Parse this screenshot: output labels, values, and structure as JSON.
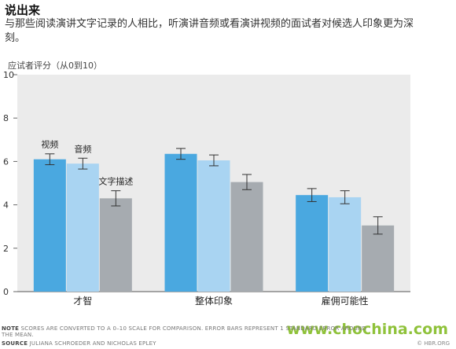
{
  "title": "说出来",
  "subtitle": "与那些阅读演讲文字记录的人相比，听演讲音频或看演讲视频的面试者对候选人印象更为深刻。",
  "watermark": "www.chochina.com",
  "footer": {
    "note_label": "NOTE",
    "note_text": "SCORES ARE CONVERTED TO A 0–10 SCALE FOR COMPARISON. ERROR BARS REPRESENT 1 STANDARD ERROR AROUND THE MEAN.",
    "source_label": "SOURCE",
    "source_text": "JULIANA SCHROEDER AND NICHOLAS EPLEY",
    "credit": "© HBR.ORG"
  },
  "colors": {
    "plot_bg": "#ebebeb",
    "video": "#4aa8e0",
    "audio": "#a9d4f2",
    "text": "#a6abb0"
  },
  "chart_data": {
    "type": "bar",
    "ylabel": "应试者评分（从0到10）",
    "ylim": [
      0,
      10
    ],
    "yticks": [
      0,
      2,
      4,
      6,
      8,
      10
    ],
    "grid": false,
    "categories": [
      "才智",
      "整体印象",
      "雇佣可能性"
    ],
    "series": [
      {
        "name": "视频",
        "values": [
          6.1,
          6.35,
          4.45
        ],
        "errors": [
          0.25,
          0.25,
          0.3
        ]
      },
      {
        "name": "音频",
        "values": [
          5.9,
          6.05,
          4.35
        ],
        "errors": [
          0.25,
          0.25,
          0.3
        ]
      },
      {
        "name": "文字描述",
        "values": [
          4.3,
          5.05,
          3.05
        ],
        "errors": [
          0.35,
          0.35,
          0.4
        ]
      }
    ],
    "series_labels_shown_on": "才智"
  }
}
